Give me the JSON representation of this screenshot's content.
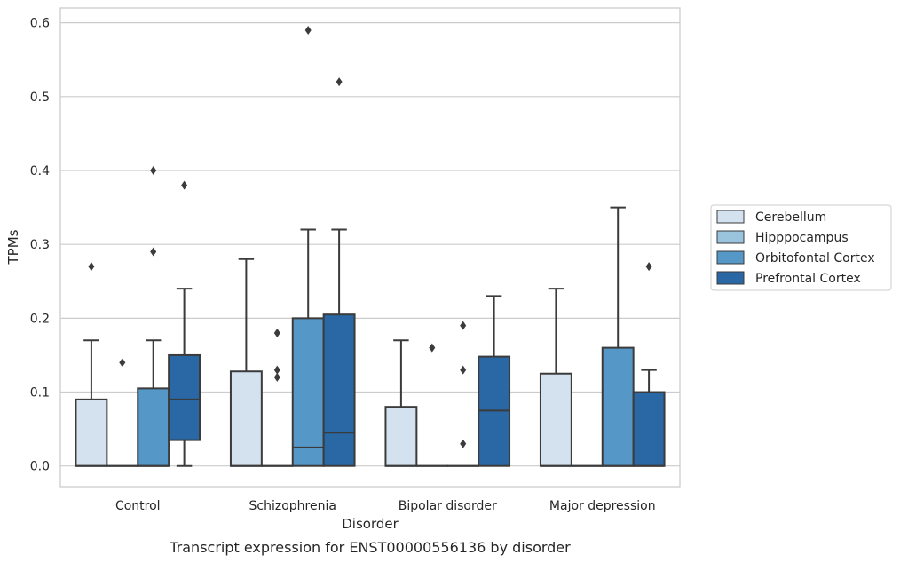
{
  "chart_data": {
    "type": "box",
    "caption": "Transcript expression for ENST00000556136 by disorder",
    "xlabel": "Disorder",
    "ylabel": "TPMs",
    "ylim": [
      -0.028,
      0.62
    ],
    "yticks": [
      "0.0",
      "0.1",
      "0.2",
      "0.3",
      "0.4",
      "0.5",
      "0.6"
    ],
    "grid": true,
    "legend_position": "right",
    "categories": [
      "Control",
      "Schizophrenia",
      "Bipolar disorder",
      "Major depression"
    ],
    "series": [
      {
        "name": "Cerebellum",
        "color": "#d4e2ef",
        "boxes": [
          {
            "min": 0,
            "q1": 0,
            "median": 0,
            "q3": 0.09,
            "max": 0.17,
            "outliers": [
              0.27
            ]
          },
          {
            "min": 0,
            "q1": 0,
            "median": 0,
            "q3": 0.128,
            "max": 0.28,
            "outliers": []
          },
          {
            "min": 0,
            "q1": 0,
            "median": 0,
            "q3": 0.08,
            "max": 0.17,
            "outliers": []
          },
          {
            "min": 0,
            "q1": 0,
            "median": 0,
            "q3": 0.125,
            "max": 0.24,
            "outliers": []
          }
        ]
      },
      {
        "name": "Hipppocampus",
        "color": "#9ac3dd",
        "boxes": [
          {
            "min": 0,
            "q1": 0,
            "median": 0,
            "q3": 0,
            "max": 0,
            "outliers": [
              0.14
            ]
          },
          {
            "min": 0,
            "q1": 0,
            "median": 0,
            "q3": 0,
            "max": 0,
            "outliers": [
              0.18,
              0.13,
              0.12
            ]
          },
          {
            "min": 0,
            "q1": 0,
            "median": 0,
            "q3": 0,
            "max": 0,
            "outliers": [
              0.16
            ]
          },
          {
            "min": 0,
            "q1": 0,
            "median": 0,
            "q3": 0,
            "max": 0,
            "outliers": []
          }
        ]
      },
      {
        "name": "Orbitofontal Cortex",
        "color": "#5597c6",
        "boxes": [
          {
            "min": 0,
            "q1": 0,
            "median": 0,
            "q3": 0.105,
            "max": 0.17,
            "outliers": [
              0.4,
              0.29
            ]
          },
          {
            "min": 0,
            "q1": 0,
            "median": 0.025,
            "q3": 0.2,
            "max": 0.32,
            "outliers": [
              0.59
            ]
          },
          {
            "min": 0,
            "q1": 0,
            "median": 0,
            "q3": 0,
            "max": 0,
            "outliers": [
              0.19,
              0.13,
              0.03
            ]
          },
          {
            "min": 0,
            "q1": 0,
            "median": 0,
            "q3": 0.16,
            "max": 0.35,
            "outliers": []
          }
        ]
      },
      {
        "name": "Prefrontal Cortex",
        "color": "#2a67a5",
        "boxes": [
          {
            "min": 0,
            "q1": 0.035,
            "median": 0.09,
            "q3": 0.15,
            "max": 0.24,
            "outliers": [
              0.38
            ]
          },
          {
            "min": 0,
            "q1": 0,
            "median": 0.045,
            "q3": 0.205,
            "max": 0.32,
            "outliers": [
              0.52
            ]
          },
          {
            "min": 0,
            "q1": 0,
            "median": 0.075,
            "q3": 0.148,
            "max": 0.23,
            "outliers": []
          },
          {
            "min": 0,
            "q1": 0,
            "median": 0,
            "q3": 0.1,
            "max": 0.13,
            "outliers": [
              0.27
            ]
          }
        ]
      }
    ]
  }
}
